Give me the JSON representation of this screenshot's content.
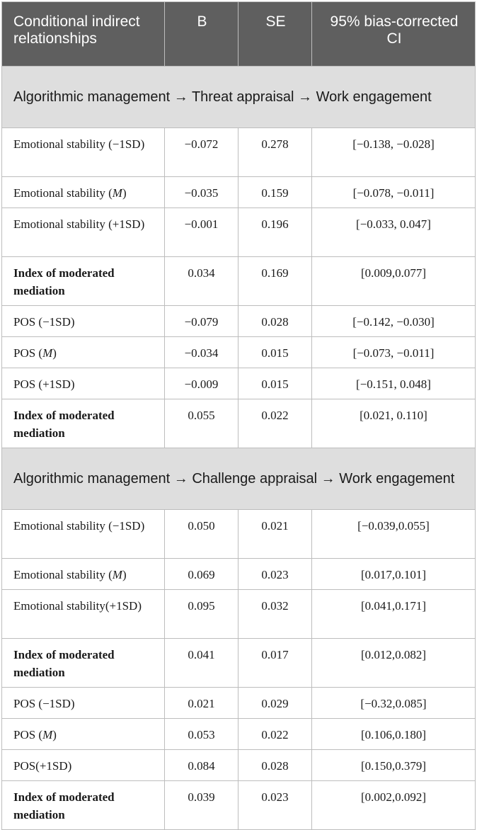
{
  "header": {
    "col1": "Conditional indirect relationships",
    "col2": "B",
    "col3": "SE",
    "col4": "95% bias-corrected CI"
  },
  "sections": [
    {
      "title": "Algorithmic management → Threat appraisal → Work engagement",
      "rows": [
        {
          "prefix": "Emotional stability (−1SD)",
          "m": "",
          "suffix": "",
          "b": "−0.072",
          "se": "0.278",
          "ci": "[−0.138, −0.028]"
        },
        {
          "prefix": "Emotional stability (",
          "m": "M",
          "suffix": ")",
          "b": "−0.035",
          "se": "0.159",
          "ci": "[−0.078, −0.011]"
        },
        {
          "prefix": "Emotional stability (+1SD)",
          "m": "",
          "suffix": "",
          "b": "−0.001",
          "se": "0.196",
          "ci": "[−0.033, 0.047]"
        },
        {
          "prefix": "Index of moderated mediation",
          "m": "",
          "suffix": "",
          "b": "0.034",
          "se": "0.169",
          "ci": "[0.009,0.077]"
        },
        {
          "prefix": "POS (−1SD)",
          "m": "",
          "suffix": "",
          "b": "−0.079",
          "se": "0.028",
          "ci": "[−0.142, −0.030]"
        },
        {
          "prefix": "POS (",
          "m": "M",
          "suffix": ")",
          "b": "−0.034",
          "se": "0.015",
          "ci": "[−0.073, −0.011]"
        },
        {
          "prefix": "POS (+1SD)",
          "m": "",
          "suffix": "",
          "b": "−0.009",
          "se": "0.015",
          "ci": "[−0.151, 0.048]"
        },
        {
          "prefix": "Index of moderated mediation",
          "m": "",
          "suffix": "",
          "b": "0.055",
          "se": "0.022",
          "ci": "[0.021, 0.110]"
        }
      ]
    },
    {
      "title": "Algorithmic management → Challenge appraisal → Work engagement",
      "rows": [
        {
          "prefix": "Emotional stability (−1SD)",
          "m": "",
          "suffix": "",
          "b": "0.050",
          "se": "0.021",
          "ci": "[−0.039,0.055]"
        },
        {
          "prefix": "Emotional stability (",
          "m": "M",
          "suffix": ")",
          "b": "0.069",
          "se": "0.023",
          "ci": "[0.017,0.101]"
        },
        {
          "prefix": "Emotional stability(+1SD)",
          "m": "",
          "suffix": "",
          "b": "0.095",
          "se": "0.032",
          "ci": "[0.041,0.171]"
        },
        {
          "prefix": "Index of moderated mediation",
          "m": "",
          "suffix": "",
          "b": "0.041",
          "se": "0.017",
          "ci": "[0.012,0.082]"
        },
        {
          "prefix": "POS (−1SD)",
          "m": "",
          "suffix": "",
          "b": "0.021",
          "se": "0.029",
          "ci": "[−0.32,0.085]"
        },
        {
          "prefix": "POS (",
          "m": "M",
          "suffix": ")",
          "b": "0.053",
          "se": "0.022",
          "ci": "[0.106,0.180]"
        },
        {
          "prefix": "POS(+1SD)",
          "m": "",
          "suffix": "",
          "b": "0.084",
          "se": "0.028",
          "ci": "[0.150,0.379]"
        },
        {
          "prefix": "Index of moderated mediation",
          "m": "",
          "suffix": "",
          "b": "0.039",
          "se": "0.023",
          "ci": "[0.002,0.092]"
        }
      ]
    }
  ]
}
